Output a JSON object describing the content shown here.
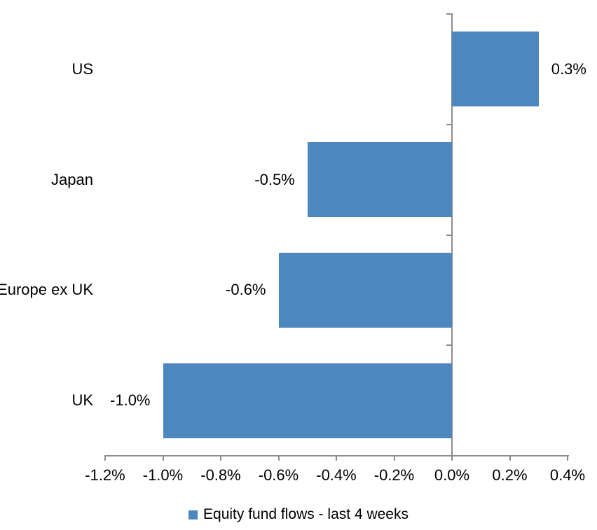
{
  "chart_data": {
    "type": "bar",
    "orientation": "horizontal",
    "categories": [
      "US",
      "Japan",
      "Europe ex UK",
      "UK"
    ],
    "series": [
      {
        "name": "Equity fund flows - last 4 weeks",
        "values": [
          0.3,
          -0.5,
          -0.6,
          -1.0
        ]
      }
    ],
    "value_labels": [
      "0.3%",
      "-0.5%",
      "-0.6%",
      "-1.0%"
    ],
    "x_ticks": [
      "-1.2%",
      "-1.0%",
      "-0.8%",
      "-0.6%",
      "-0.4%",
      "-0.2%",
      "0.0%",
      "0.2%",
      "0.4%"
    ],
    "x_tick_values": [
      -1.2,
      -1.0,
      -0.8,
      -0.6,
      -0.4,
      -0.2,
      0.0,
      0.2,
      0.4
    ],
    "xlim": [
      -1.2,
      0.4
    ],
    "unit": "%",
    "grid": false,
    "legend_position": "bottom",
    "colors": {
      "bar": "#4E87BE",
      "axis": "#8C8C8C",
      "text": "#000000",
      "background": "#FFFFFF"
    }
  }
}
